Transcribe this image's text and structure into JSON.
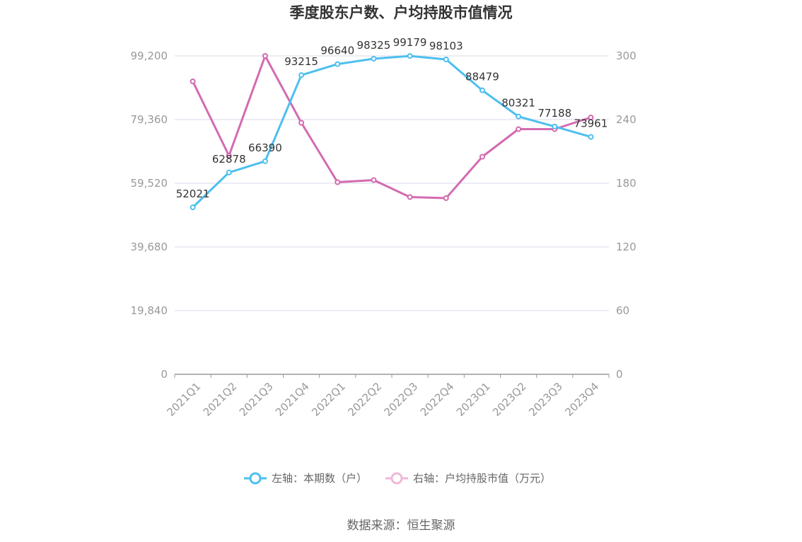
{
  "chart_data": {
    "type": "line",
    "title": "季度股东户数、户均持股市值情况",
    "categories": [
      "2021Q1",
      "2021Q2",
      "2021Q3",
      "2021Q4",
      "2022Q1",
      "2022Q2",
      "2022Q3",
      "2022Q4",
      "2023Q1",
      "2023Q2",
      "2023Q3",
      "2023Q4"
    ],
    "left_axis": {
      "ylim": [
        0,
        99200
      ],
      "ticks": [
        "0",
        "19,840",
        "39,680",
        "59,520",
        "79,360",
        "99,200"
      ]
    },
    "right_axis": {
      "ylim": [
        0,
        300
      ],
      "ticks": [
        "0",
        "60",
        "120",
        "180",
        "240",
        "300"
      ]
    },
    "series": [
      {
        "name": "左轴：本期数（户）",
        "axis": "left",
        "color": "#4dbfef",
        "values": [
          52021,
          62878,
          66390,
          93215,
          96640,
          98325,
          99179,
          98103,
          88479,
          80321,
          77188,
          73961
        ],
        "labels": [
          "52021",
          "62878",
          "66390",
          "93215",
          "96640",
          "98325",
          "99179",
          "98103",
          "88479",
          "80321",
          "77188",
          "73961"
        ]
      },
      {
        "name": "右轴：户均持股市值（万元）",
        "axis": "right",
        "color": "#d36bb0",
        "legend_color": "#f0b8d8",
        "values": [
          276,
          206,
          300,
          237,
          181,
          183,
          167,
          166,
          205,
          231,
          231,
          242
        ]
      }
    ],
    "grid": true,
    "legend_position": "bottom"
  },
  "source": "数据来源：恒生聚源"
}
